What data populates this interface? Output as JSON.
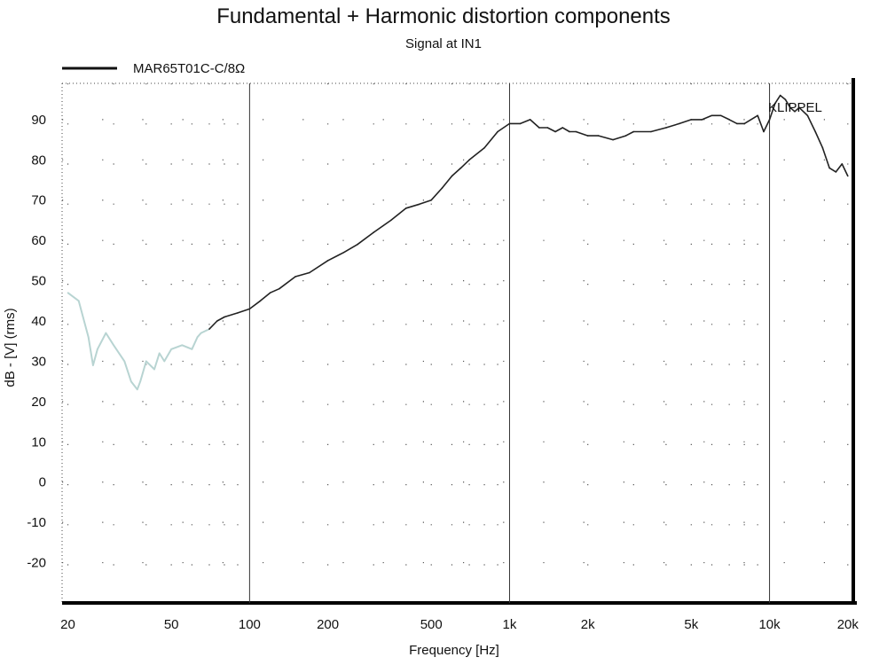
{
  "chart_data": {
    "type": "line",
    "title": "Fundamental + Harmonic distortion components",
    "subtitle": "Signal at IN1",
    "xlabel": "Frequency [Hz]",
    "ylabel": "dB - [V]  (rms)",
    "x_scale": "log",
    "xlim": [
      19,
      21000
    ],
    "ylim": [
      -30,
      99
    ],
    "x_ticks": [
      20,
      50,
      100,
      200,
      500,
      1000,
      2000,
      5000,
      10000,
      20000
    ],
    "x_tick_labels": [
      "20",
      "50",
      "100",
      "200",
      "500",
      "1k",
      "2k",
      "5k",
      "10k",
      "20k"
    ],
    "y_ticks": [
      -20,
      -10,
      0,
      10,
      20,
      30,
      40,
      50,
      60,
      70,
      80,
      90
    ],
    "y_tick_labels": [
      "-20",
      "-10",
      "0",
      "10",
      "20",
      "30",
      "40",
      "50",
      "60",
      "70",
      "80",
      "90"
    ],
    "grid": "dotted, major vertical lines at 100, 1k, 10k",
    "legend_position": "top-left",
    "watermark": "KLIPPEL",
    "colors": {
      "low_segment": "#b8d4d2",
      "main": "#222222",
      "frame": "#000000"
    },
    "series": [
      {
        "name": "MAR65T01C-C/8Ω",
        "low_range_max_x": 70,
        "x": [
          20,
          22,
          24,
          25,
          26,
          28,
          30,
          33,
          35,
          37,
          38,
          40,
          43,
          45,
          47,
          50,
          55,
          60,
          63,
          65,
          70,
          75,
          80,
          90,
          100,
          110,
          120,
          130,
          150,
          170,
          200,
          230,
          260,
          300,
          350,
          400,
          450,
          500,
          550,
          600,
          650,
          700,
          800,
          900,
          1000,
          1100,
          1200,
          1300,
          1400,
          1500,
          1600,
          1700,
          1800,
          2000,
          2200,
          2500,
          2800,
          3000,
          3500,
          4000,
          4500,
          5000,
          5500,
          6000,
          6500,
          7000,
          7500,
          8000,
          9000,
          9500,
          10000,
          10500,
          11000,
          11500,
          12000,
          12500,
          13000,
          14000,
          15000,
          16000,
          17000,
          18000,
          19000,
          20000
        ],
        "y": [
          47,
          45,
          36,
          29,
          33,
          37,
          34,
          30,
          25,
          23,
          25,
          30,
          28,
          32,
          30,
          33,
          34,
          33,
          36,
          37,
          38,
          40,
          41,
          42,
          43,
          45,
          47,
          48,
          51,
          52,
          55,
          57,
          59,
          62,
          65,
          68,
          69,
          70,
          73,
          76,
          78,
          80,
          83,
          87,
          89,
          89,
          90,
          88,
          88,
          87,
          88,
          87,
          87,
          86,
          86,
          85,
          86,
          87,
          87,
          88,
          89,
          90,
          90,
          91,
          91,
          90,
          89,
          89,
          91,
          87,
          90,
          94,
          96,
          95,
          93,
          92,
          93,
          91,
          87,
          83,
          78,
          77,
          79,
          76
        ]
      }
    ]
  }
}
